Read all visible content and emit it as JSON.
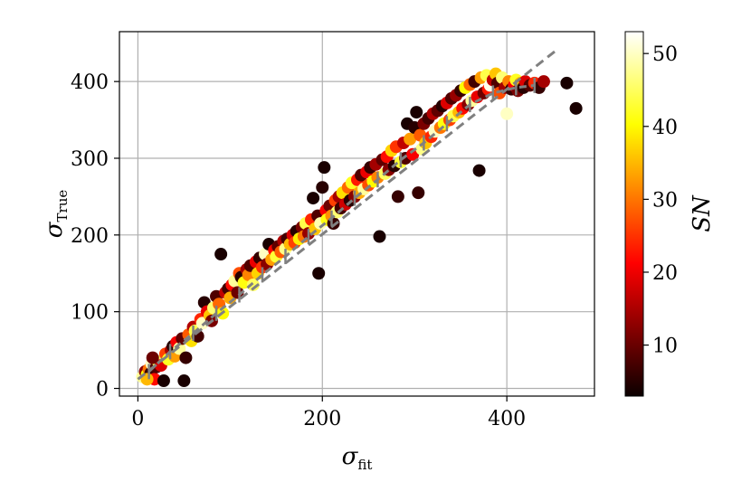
{
  "chart_data": {
    "type": "scatter",
    "title": "",
    "xlabel": "σ",
    "xlabel_sub": "fit",
    "ylabel": "σ",
    "ylabel_sub": "True",
    "xlim": [
      -20,
      495
    ],
    "ylim": [
      -10,
      465
    ],
    "xticks": [
      0,
      200,
      400
    ],
    "yticks": [
      0,
      100,
      200,
      300,
      400
    ],
    "grid": true,
    "one_to_one_line": {
      "x": [
        0,
        455
      ],
      "y": [
        12,
        442
      ],
      "color": "#808080",
      "style": "dashed"
    },
    "binned_medians": {
      "x": [
        12,
        35,
        60,
        85,
        110,
        135,
        160,
        185,
        210,
        235,
        260,
        285,
        310,
        335,
        360,
        385,
        410,
        430
      ],
      "y": [
        22,
        48,
        72,
        98,
        122,
        148,
        172,
        198,
        222,
        248,
        272,
        298,
        320,
        345,
        370,
        385,
        392,
        395
      ],
      "color": "#808080"
    },
    "colorbar": {
      "label": "SN",
      "cmap": "hot",
      "range": [
        3,
        53
      ],
      "ticks": [
        10,
        20,
        30,
        40,
        50
      ]
    },
    "points": {
      "columns": [
        "x",
        "y",
        "sn"
      ],
      "values": [
        [
          5,
          15,
          48
        ],
        [
          8,
          22,
          12
        ],
        [
          10,
          18,
          40
        ],
        [
          12,
          25,
          30
        ],
        [
          14,
          20,
          6
        ],
        [
          15,
          32,
          50
        ],
        [
          18,
          12,
          22
        ],
        [
          20,
          28,
          8
        ],
        [
          22,
          35,
          45
        ],
        [
          25,
          30,
          18
        ],
        [
          10,
          12,
          35
        ],
        [
          16,
          40,
          10
        ],
        [
          28,
          10,
          4
        ],
        [
          30,
          45,
          26
        ],
        [
          33,
          38,
          42
        ],
        [
          36,
          50,
          14
        ],
        [
          38,
          55,
          5
        ],
        [
          40,
          42,
          33
        ],
        [
          42,
          60,
          20
        ],
        [
          45,
          52,
          48
        ],
        [
          48,
          65,
          9
        ],
        [
          50,
          10,
          4
        ],
        [
          52,
          40,
          6
        ],
        [
          55,
          70,
          28
        ],
        [
          58,
          62,
          38
        ],
        [
          60,
          80,
          15
        ],
        [
          62,
          75,
          44
        ],
        [
          65,
          68,
          7
        ],
        [
          68,
          90,
          24
        ],
        [
          70,
          85,
          50
        ],
        [
          72,
          112,
          5
        ],
        [
          75,
          100,
          19
        ],
        [
          78,
          95,
          36
        ],
        [
          80,
          88,
          11
        ],
        [
          82,
          105,
          46
        ],
        [
          85,
          120,
          8
        ],
        [
          88,
          110,
          29
        ],
        [
          90,
          175,
          4
        ],
        [
          92,
          98,
          40
        ],
        [
          95,
          125,
          16
        ],
        [
          98,
          130,
          7
        ],
        [
          100,
          118,
          34
        ],
        [
          102,
          135,
          22
        ],
        [
          105,
          140,
          48
        ],
        [
          108,
          125,
          10
        ],
        [
          110,
          150,
          27
        ],
        [
          112,
          145,
          5
        ],
        [
          115,
          138,
          41
        ],
        [
          118,
          155,
          14
        ],
        [
          120,
          148,
          31
        ],
        [
          122,
          160,
          8
        ],
        [
          125,
          135,
          45
        ],
        [
          128,
          165,
          19
        ],
        [
          130,
          150,
          37
        ],
        [
          132,
          170,
          6
        ],
        [
          135,
          158,
          25
        ],
        [
          138,
          175,
          50
        ],
        [
          140,
          162,
          12
        ],
        [
          142,
          188,
          4
        ],
        [
          145,
          168,
          33
        ],
        [
          148,
          180,
          21
        ],
        [
          150,
          172,
          43
        ],
        [
          152,
          185,
          9
        ],
        [
          155,
          178,
          28
        ],
        [
          158,
          192,
          15
        ],
        [
          160,
          182,
          47
        ],
        [
          162,
          195,
          7
        ],
        [
          165,
          188,
          35
        ],
        [
          168,
          200,
          18
        ],
        [
          170,
          190,
          26
        ],
        [
          172,
          205,
          5
        ],
        [
          175,
          195,
          39
        ],
        [
          178,
          210,
          11
        ],
        [
          180,
          198,
          30
        ],
        [
          182,
          215,
          44
        ],
        [
          185,
          202,
          13
        ],
        [
          188,
          220,
          24
        ],
        [
          190,
          248,
          4
        ],
        [
          192,
          208,
          36
        ],
        [
          195,
          225,
          8
        ],
        [
          196,
          150,
          4
        ],
        [
          198,
          215,
          49
        ],
        [
          200,
          262,
          5
        ],
        [
          202,
          288,
          4
        ],
        [
          204,
          232,
          20
        ],
        [
          205,
          220,
          41
        ],
        [
          208,
          238,
          10
        ],
        [
          210,
          225,
          32
        ],
        [
          212,
          215,
          6
        ],
        [
          214,
          245,
          26
        ],
        [
          216,
          230,
          46
        ],
        [
          218,
          250,
          14
        ],
        [
          220,
          235,
          7
        ],
        [
          222,
          255,
          38
        ],
        [
          225,
          240,
          17
        ],
        [
          228,
          262,
          29
        ],
        [
          230,
          245,
          5
        ],
        [
          232,
          268,
          42
        ],
        [
          235,
          250,
          12
        ],
        [
          238,
          272,
          23
        ],
        [
          240,
          255,
          34
        ],
        [
          242,
          278,
          8
        ],
        [
          245,
          260,
          48
        ],
        [
          248,
          282,
          19
        ],
        [
          250,
          265,
          27
        ],
        [
          252,
          288,
          6
        ],
        [
          255,
          270,
          40
        ],
        [
          258,
          292,
          14
        ],
        [
          260,
          275,
          31
        ],
        [
          262,
          198,
          4
        ],
        [
          265,
          298,
          9
        ],
        [
          268,
          280,
          45
        ],
        [
          270,
          302,
          22
        ],
        [
          272,
          285,
          12
        ],
        [
          275,
          310,
          37
        ],
        [
          278,
          290,
          5
        ],
        [
          280,
          315,
          25
        ],
        [
          282,
          250,
          6
        ],
        [
          285,
          295,
          43
        ],
        [
          288,
          320,
          16
        ],
        [
          290,
          300,
          8
        ],
        [
          292,
          345,
          4
        ],
        [
          295,
          325,
          33
        ],
        [
          298,
          305,
          20
        ],
        [
          300,
          340,
          5
        ],
        [
          302,
          360,
          4
        ],
        [
          304,
          255,
          6
        ],
        [
          306,
          330,
          28
        ],
        [
          308,
          312,
          47
        ],
        [
          310,
          345,
          11
        ],
        [
          312,
          320,
          36
        ],
        [
          315,
          352,
          7
        ],
        [
          318,
          328,
          24
        ],
        [
          320,
          358,
          15
        ],
        [
          322,
          335,
          50
        ],
        [
          325,
          362,
          9
        ],
        [
          328,
          340,
          30
        ],
        [
          330,
          368,
          5
        ],
        [
          332,
          345,
          41
        ],
        [
          335,
          372,
          18
        ],
        [
          338,
          350,
          26
        ],
        [
          340,
          378,
          8
        ],
        [
          342,
          355,
          44
        ],
        [
          345,
          382,
          13
        ],
        [
          348,
          360,
          35
        ],
        [
          350,
          388,
          6
        ],
        [
          352,
          365,
          22
        ],
        [
          355,
          392,
          40
        ],
        [
          358,
          370,
          12
        ],
        [
          360,
          396,
          29
        ],
        [
          362,
          375,
          48
        ],
        [
          365,
          400,
          7
        ],
        [
          368,
          380,
          19
        ],
        [
          370,
          284,
          4
        ],
        [
          372,
          405,
          33
        ],
        [
          375,
          385,
          10
        ],
        [
          378,
          408,
          44
        ],
        [
          380,
          390,
          23
        ],
        [
          382,
          395,
          52
        ],
        [
          385,
          402,
          16
        ],
        [
          388,
          410,
          36
        ],
        [
          390,
          398,
          8
        ],
        [
          392,
          385,
          27
        ],
        [
          395,
          405,
          46
        ],
        [
          398,
          392,
          14
        ],
        [
          400,
          358,
          50
        ],
        [
          402,
          400,
          31
        ],
        [
          405,
          390,
          6
        ],
        [
          408,
          395,
          21
        ],
        [
          410,
          402,
          42
        ],
        [
          412,
          388,
          11
        ],
        [
          415,
          398,
          35
        ],
        [
          418,
          392,
          5
        ],
        [
          420,
          400,
          18
        ],
        [
          425,
          395,
          8
        ],
        [
          430,
          398,
          24
        ],
        [
          435,
          392,
          6
        ],
        [
          440,
          400,
          14
        ],
        [
          465,
          398,
          4
        ],
        [
          475,
          365,
          4
        ]
      ]
    }
  }
}
